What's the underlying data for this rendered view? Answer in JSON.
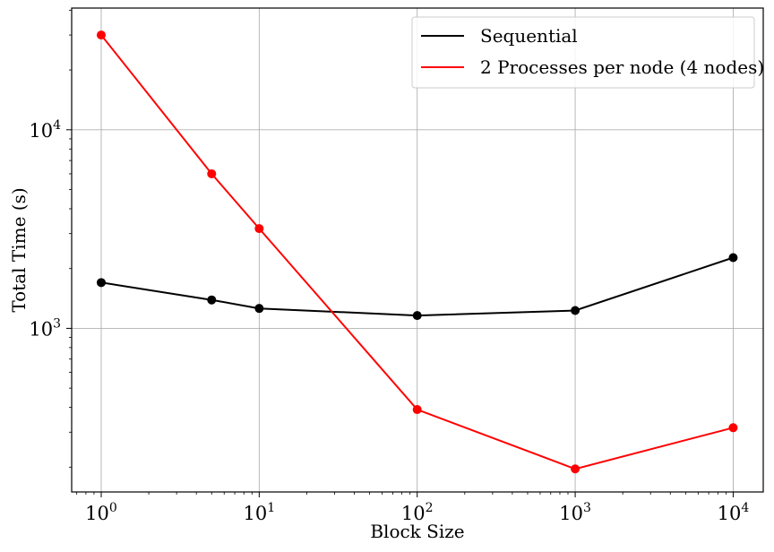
{
  "chart_data": {
    "type": "line",
    "xscale": "log",
    "yscale": "log",
    "xlabel": "Block Size",
    "ylabel": "Total Time (s)",
    "xlim": [
      0.65,
      15500
    ],
    "ylim": [
      150,
      41000
    ],
    "grid": true,
    "legend_position": "top-right",
    "x_ticks": [
      {
        "base": "10",
        "exp": "0",
        "value": 1
      },
      {
        "base": "10",
        "exp": "1",
        "value": 10
      },
      {
        "base": "10",
        "exp": "2",
        "value": 100
      },
      {
        "base": "10",
        "exp": "3",
        "value": 1000
      },
      {
        "base": "10",
        "exp": "4",
        "value": 10000
      }
    ],
    "y_ticks": [
      {
        "base": "10",
        "exp": "3",
        "value": 1000
      },
      {
        "base": "10",
        "exp": "4",
        "value": 10000
      }
    ],
    "series": [
      {
        "name": "Sequential",
        "color": "#000000",
        "x": [
          1,
          5,
          10,
          100,
          1000,
          10000
        ],
        "y": [
          1700,
          1390,
          1260,
          1160,
          1230,
          2270
        ]
      },
      {
        "name": "2 Processes per node (4 nodes)",
        "color": "#ff0000",
        "x": [
          1,
          5,
          10,
          100,
          1000,
          10000
        ],
        "y": [
          30000,
          6000,
          3180,
          390,
          196,
          316
        ]
      }
    ]
  }
}
